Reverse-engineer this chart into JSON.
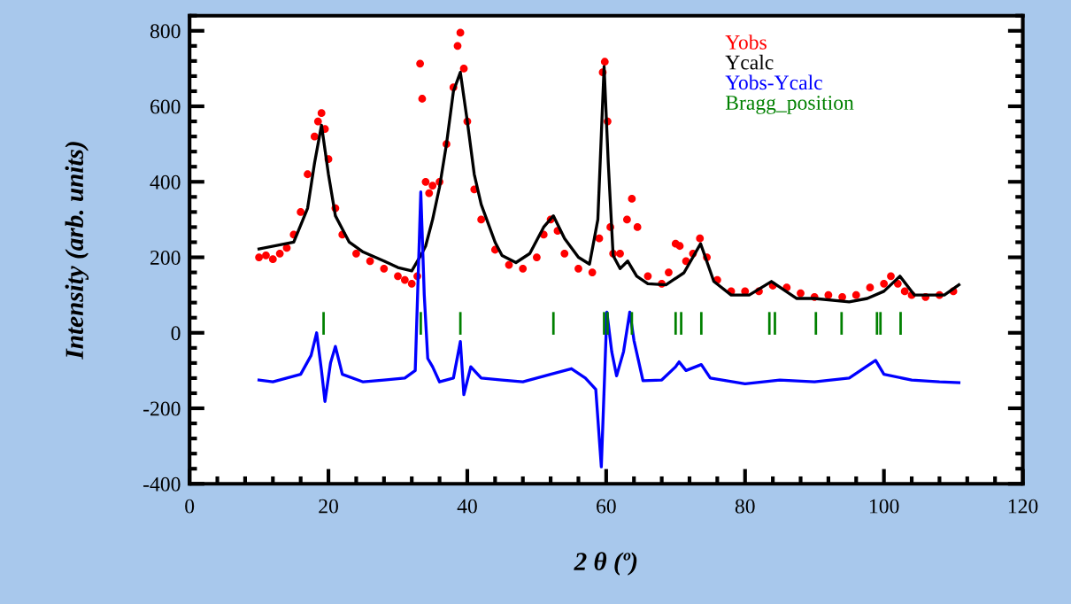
{
  "chart_data": {
    "type": "scatter",
    "xlabel": "2 θ (º)",
    "ylabel": "Intensity (arb. units)",
    "xlim": [
      0,
      120
    ],
    "ylim": [
      -400,
      840
    ],
    "xticks": [
      0,
      {
        "value": 4,
        "label": null
      },
      {
        "value": 8,
        "label": null
      },
      {
        "value": 12,
        "label": null
      },
      {
        "value": 16,
        "label": null
      },
      20,
      {
        "value": 24,
        "label": null
      },
      {
        "value": 28,
        "label": null
      },
      {
        "value": 32,
        "label": null
      },
      {
        "value": 36,
        "label": null
      },
      40,
      {
        "value": 44,
        "label": null
      },
      {
        "value": 48,
        "label": null
      },
      {
        "value": 52,
        "label": null
      },
      {
        "value": 56,
        "label": null
      },
      60,
      {
        "value": 64,
        "label": null
      },
      {
        "value": 68,
        "label": null
      },
      {
        "value": 72,
        "label": null
      },
      {
        "value": 76,
        "label": null
      },
      80,
      {
        "value": 84,
        "label": null
      },
      {
        "value": 88,
        "label": null
      },
      {
        "value": 92,
        "label": null
      },
      {
        "value": 96,
        "label": null
      },
      100,
      {
        "value": 104,
        "label": null
      },
      {
        "value": 108,
        "label": null
      },
      {
        "value": 112,
        "label": null
      },
      {
        "value": 116,
        "label": null
      },
      120
    ],
    "yticks": [
      -400,
      {
        "value": -360,
        "label": null
      },
      {
        "value": -320,
        "label": null
      },
      {
        "value": -280,
        "label": null
      },
      {
        "value": -240,
        "label": null
      },
      -200,
      {
        "value": -160,
        "label": null
      },
      {
        "value": -120,
        "label": null
      },
      {
        "value": -80,
        "label": null
      },
      {
        "value": -40,
        "label": null
      },
      0,
      {
        "value": 40,
        "label": null
      },
      {
        "value": 80,
        "label": null
      },
      {
        "value": 120,
        "label": null
      },
      {
        "value": 160,
        "label": null
      },
      200,
      {
        "value": 240,
        "label": null
      },
      {
        "value": 280,
        "label": null
      },
      {
        "value": 320,
        "label": null
      },
      {
        "value": 360,
        "label": null
      },
      400,
      {
        "value": 440,
        "label": null
      },
      {
        "value": 480,
        "label": null
      },
      {
        "value": 520,
        "label": null
      },
      {
        "value": 560,
        "label": null
      },
      600,
      {
        "value": 640,
        "label": null
      },
      {
        "value": 680,
        "label": null
      },
      {
        "value": 720,
        "label": null
      },
      {
        "value": 760,
        "label": null
      },
      800,
      {
        "value": 840,
        "label": null
      }
    ],
    "grid": false,
    "legend": "top right",
    "series": [
      {
        "name": "Yobs",
        "marker": "circle",
        "color": "#ff0000",
        "x": [
          10,
          11,
          12,
          13,
          14,
          15,
          16,
          17,
          18,
          18.5,
          19,
          19.5,
          20,
          21,
          22,
          24,
          26,
          28,
          30,
          31,
          32,
          32.8,
          33.2,
          33.5,
          34,
          34.5,
          35,
          36,
          37,
          38,
          38.6,
          39,
          39.5,
          40,
          41,
          42,
          44,
          46,
          48,
          50,
          51,
          52,
          53,
          54,
          56,
          58,
          59,
          59.5,
          59.8,
          60.2,
          60.6,
          61,
          62,
          63,
          63.7,
          64.5,
          66,
          68,
          69,
          70,
          70.6,
          71.5,
          72.5,
          73.5,
          74.5,
          76,
          78,
          80,
          82,
          84,
          86,
          88,
          90,
          92,
          94,
          96,
          98,
          100,
          101,
          102,
          103,
          104,
          106,
          108,
          110
        ],
        "values": [
          200,
          205,
          195,
          210,
          225,
          260,
          320,
          420,
          520,
          560,
          582,
          540,
          460,
          330,
          260,
          210,
          190,
          170,
          150,
          140,
          130,
          150,
          713,
          620,
          400,
          370,
          390,
          400,
          500,
          650,
          760,
          795,
          700,
          560,
          380,
          300,
          220,
          180,
          170,
          200,
          260,
          300,
          270,
          210,
          170,
          160,
          250,
          690,
          718,
          560,
          280,
          210,
          210,
          300,
          355,
          280,
          150,
          130,
          160,
          236,
          230,
          190,
          210,
          250,
          200,
          140,
          110,
          110,
          110,
          125,
          120,
          105,
          95,
          100,
          95,
          100,
          120,
          130,
          150,
          130,
          110,
          100,
          95,
          100,
          110
        ]
      },
      {
        "name": "Ycalc",
        "type": "line",
        "marker": "none",
        "line_style": "solid",
        "color": "#000000",
        "x": [
          10,
          15,
          17,
          18,
          19,
          20,
          21,
          23,
          25,
          28,
          30,
          32,
          33.3,
          34,
          35,
          36,
          37,
          38,
          39,
          40,
          41,
          42,
          44,
          45,
          47,
          49,
          51,
          52.4,
          54,
          56,
          57.6,
          58.8,
          59.7,
          60.3,
          61,
          62,
          63.1,
          64.4,
          66,
          68.6,
          71.2,
          73.6,
          75.5,
          78,
          80.6,
          83.8,
          87.4,
          90,
          95,
          97.6,
          100,
          102.3,
          104.4,
          108.7,
          110.8
        ],
        "values": [
          222,
          240,
          330,
          450,
          550,
          420,
          310,
          240,
          214,
          190,
          173,
          164,
          205,
          230,
          300,
          386,
          500,
          640,
          690,
          560,
          420,
          340,
          240,
          205,
          186,
          210,
          280,
          310,
          250,
          200,
          182,
          300,
          705,
          450,
          205,
          170,
          190,
          150,
          130,
          127,
          159,
          236,
          136,
          100,
          100,
          136,
          91,
          91,
          82,
          91,
          110,
          150,
          100,
          100,
          127
        ]
      },
      {
        "name": "Yobs-Ycalc",
        "type": "line",
        "marker": "none",
        "line_style": "solid",
        "color": "#0000ff",
        "x": [
          10,
          12,
          14,
          16,
          17.5,
          18.3,
          19,
          19.5,
          20.3,
          21,
          22,
          25,
          28,
          31,
          32.5,
          33.3,
          33.8,
          34.3,
          35,
          36,
          38,
          39,
          39.5,
          40.5,
          42,
          45,
          48,
          52,
          55,
          57,
          58.5,
          59.3,
          59.8,
          60.1,
          60.8,
          61.5,
          62.5,
          63.4,
          64,
          65.3,
          68,
          70,
          70.5,
          71.5,
          73.7,
          75,
          80,
          85,
          90,
          95,
          98.8,
          100,
          104,
          108,
          110.8
        ],
        "values": [
          -125,
          -130,
          -120,
          -110,
          -60,
          0,
          -100,
          -182,
          -80,
          -36,
          -110,
          -130,
          -125,
          -120,
          -100,
          373,
          100,
          -68,
          -90,
          -130,
          -120,
          -23,
          -164,
          -90,
          -120,
          -125,
          -130,
          -110,
          -95,
          -120,
          -150,
          -355,
          -100,
          55,
          -50,
          -114,
          -50,
          55,
          -20,
          -127,
          -125,
          -90,
          -77,
          -100,
          -84,
          -120,
          -135,
          -125,
          -130,
          -120,
          -73,
          -110,
          -125,
          -130,
          -132
        ]
      },
      {
        "name": "Bragg_position",
        "type": "bar",
        "color": "#008000",
        "x": [
          19.3,
          33.3,
          39.0,
          52.4,
          59.7,
          60.2,
          63.7,
          70.0,
          70.8,
          73.7,
          83.5,
          84.3,
          90.2,
          93.9,
          99.0,
          99.5,
          102.4
        ],
        "base": [
          -5,
          -5,
          -5,
          -5,
          -5,
          -5,
          -5,
          -5,
          -5,
          -5,
          -5,
          -5,
          -5,
          -5,
          -5,
          -5,
          -5
        ],
        "values": [
          60,
          60,
          60,
          60,
          60,
          60,
          60,
          60,
          60,
          60,
          60,
          60,
          60,
          60,
          60,
          60,
          60
        ]
      }
    ]
  }
}
